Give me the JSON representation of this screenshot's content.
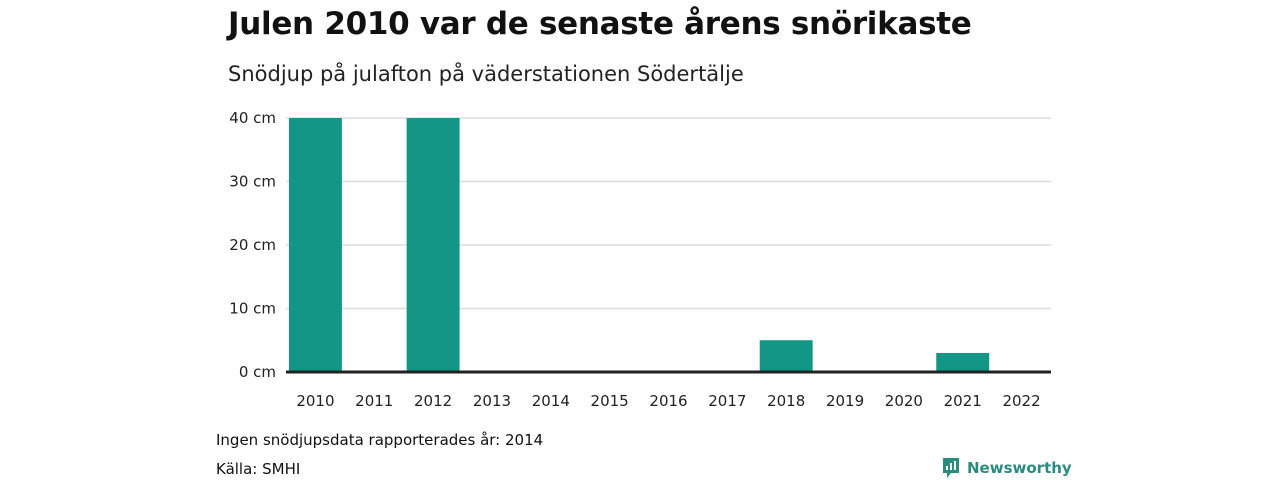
{
  "title": "Julen 2010 var de senaste årens snörikaste",
  "subtitle": "Snödjup på julafton på väderstationen Södertälje",
  "note": "Ingen snödjupsdata rapporterades år: 2014",
  "source": "Källa: SMHI",
  "brand": "Newsworthy",
  "colors": {
    "bar": "#149686",
    "grid": "#dddddd",
    "baseline": "#222222",
    "brand": "#2a8b7f"
  },
  "chart_data": {
    "type": "bar",
    "categories": [
      "2010",
      "2011",
      "2012",
      "2013",
      "2014",
      "2015",
      "2016",
      "2017",
      "2018",
      "2019",
      "2020",
      "2021",
      "2022"
    ],
    "values": [
      40,
      0,
      40,
      0,
      null,
      0,
      0,
      0,
      5,
      0,
      0,
      3,
      0
    ],
    "ylim": [
      0,
      40
    ],
    "yticks": [
      0,
      10,
      20,
      30,
      40
    ],
    "ytick_suffix": " cm",
    "grid": true,
    "title": "Julen 2010 var de senaste årens snörikaste",
    "xlabel": "",
    "ylabel": ""
  }
}
